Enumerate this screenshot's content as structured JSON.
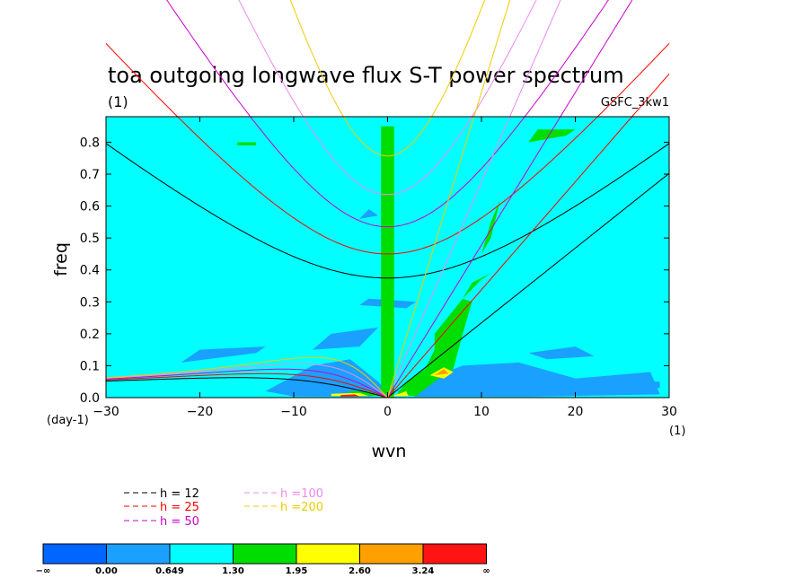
{
  "chart_data": {
    "type": "heatmap",
    "title": "toa outgoing longwave flux S-T power spectrum",
    "subtitle_units": "(1)",
    "case_label": "GSFC_3kw1",
    "xlabel": "wvn",
    "x_units": "(1)",
    "ylabel": "freq",
    "y_units": "(day-1)",
    "xlim": [
      -30,
      30
    ],
    "ylim": [
      0,
      0.88
    ],
    "x_ticks": [
      {
        "value": -30,
        "label": "−30"
      },
      {
        "value": -20,
        "label": "−20"
      },
      {
        "value": -10,
        "label": "−10"
      },
      {
        "value": 0,
        "label": "0"
      },
      {
        "value": 10,
        "label": "10"
      },
      {
        "value": 20,
        "label": "20"
      },
      {
        "value": 30,
        "label": "30"
      }
    ],
    "y_ticks": [
      {
        "value": 0.0,
        "label": "0.0"
      },
      {
        "value": 0.1,
        "label": "0.1"
      },
      {
        "value": 0.2,
        "label": "0.2"
      },
      {
        "value": 0.3,
        "label": "0.3"
      },
      {
        "value": 0.4,
        "label": "0.4"
      },
      {
        "value": 0.5,
        "label": "0.5"
      },
      {
        "value": 0.6,
        "label": "0.6"
      },
      {
        "value": 0.7,
        "label": "0.7"
      },
      {
        "value": 0.8,
        "label": "0.8"
      }
    ],
    "background_level_color": "#00ffff",
    "colorbar": {
      "colors": [
        "#0066ff",
        "#1aa0ff",
        "#00ffff",
        "#00dd00",
        "#ffff00",
        "#ffa000",
        "#ff1414"
      ],
      "labels": [
        "−∞",
        "0.00",
        "0.649",
        "1.30",
        "1.95",
        "2.60",
        "3.24",
        "∞"
      ]
    },
    "dispersion_curves": [
      {
        "name": "h = 12",
        "h": 12,
        "color": "#000000"
      },
      {
        "name": "h = 25",
        "h": 25,
        "color": "#ff0000"
      },
      {
        "name": "h = 50",
        "h": 50,
        "color": "#cc00cc"
      },
      {
        "name": "h =100",
        "h": 100,
        "color": "#ee88ee"
      },
      {
        "name": "h =200",
        "h": 200,
        "color": "#eecc00"
      }
    ],
    "legend_placement": "bottom-left",
    "contour_regions": [
      {
        "level": 1,
        "points": [
          [
            -13,
            0.02
          ],
          [
            -8,
            0.1
          ],
          [
            -4,
            0.12
          ],
          [
            -1,
            0.05
          ],
          [
            0,
            0.015
          ],
          [
            -2,
            0.003
          ],
          [
            -10,
            0.004
          ]
        ]
      },
      {
        "level": 1,
        "points": [
          [
            -8,
            0.15
          ],
          [
            -3,
            0.16
          ],
          [
            -1,
            0.22
          ],
          [
            -6,
            0.2
          ]
        ]
      },
      {
        "level": 1,
        "points": [
          [
            -22,
            0.11
          ],
          [
            -14,
            0.14
          ],
          [
            -13,
            0.16
          ],
          [
            -20,
            0.15
          ]
        ]
      },
      {
        "level": 1,
        "points": [
          [
            -3,
            0.29
          ],
          [
            2,
            0.28
          ],
          [
            3,
            0.3
          ],
          [
            -2,
            0.31
          ]
        ]
      },
      {
        "level": 1,
        "points": [
          [
            -3,
            0.56
          ],
          [
            -1,
            0.57
          ],
          [
            -2,
            0.59
          ]
        ]
      },
      {
        "level": 1,
        "points": [
          [
            1,
            0.02
          ],
          [
            8,
            0.1
          ],
          [
            14,
            0.11
          ],
          [
            20,
            0.06
          ],
          [
            28,
            0.08
          ],
          [
            29,
            0.01
          ],
          [
            15,
            0.003
          ],
          [
            3,
            0.003
          ]
        ]
      },
      {
        "level": 1,
        "points": [
          [
            15,
            0.14
          ],
          [
            20,
            0.16
          ],
          [
            22,
            0.13
          ],
          [
            17,
            0.12
          ]
        ]
      },
      {
        "level": 1,
        "points": [
          [
            26,
            0.02
          ],
          [
            29,
            0.03
          ],
          [
            29,
            0.05
          ],
          [
            26,
            0.05
          ]
        ]
      },
      {
        "level": 3,
        "points": [
          [
            -0.7,
            0.0
          ],
          [
            0.7,
            0.0
          ],
          [
            0.7,
            0.85
          ],
          [
            -0.7,
            0.85
          ]
        ]
      },
      {
        "level": 3,
        "points": [
          [
            5,
            0.2
          ],
          [
            8,
            0.31
          ],
          [
            9,
            0.3
          ],
          [
            8,
            0.2
          ],
          [
            7,
            0.09
          ],
          [
            5,
            0.05
          ],
          [
            3,
            0.005
          ],
          [
            1,
            0.01
          ],
          [
            2,
            0.05
          ],
          [
            4,
            0.09
          ],
          [
            5,
            0.15
          ]
        ]
      },
      {
        "level": 3,
        "points": [
          [
            8,
            0.31
          ],
          [
            9,
            0.36
          ],
          [
            11,
            0.39
          ],
          [
            10,
            0.37
          ]
        ]
      },
      {
        "level": 3,
        "points": [
          [
            10,
            0.45
          ],
          [
            11,
            0.55
          ],
          [
            12,
            0.62
          ],
          [
            11,
            0.5
          ]
        ]
      },
      {
        "level": 3,
        "points": [
          [
            15,
            0.8
          ],
          [
            19,
            0.82
          ],
          [
            20,
            0.84
          ],
          [
            16,
            0.84
          ]
        ]
      },
      {
        "level": 3,
        "points": [
          [
            -16,
            0.79
          ],
          [
            -14,
            0.79
          ],
          [
            -14,
            0.8
          ],
          [
            -16,
            0.8
          ]
        ]
      },
      {
        "level": 3,
        "points": [
          [
            -4,
            0.01
          ],
          [
            -1,
            0.005
          ],
          [
            -2,
            0.02
          ],
          [
            -4,
            0.02
          ]
        ]
      },
      {
        "level": 4,
        "points": [
          [
            4.5,
            0.07
          ],
          [
            6,
            0.095
          ],
          [
            7,
            0.08
          ],
          [
            6,
            0.06
          ]
        ]
      },
      {
        "level": 4,
        "points": [
          [
            -6,
            0.005
          ],
          [
            -2,
            0.005
          ],
          [
            -3,
            0.015
          ],
          [
            -6,
            0.012
          ]
        ]
      },
      {
        "level": 4,
        "points": [
          [
            0.5,
            0.005
          ],
          [
            2,
            0.02
          ],
          [
            2.2,
            0.005
          ]
        ]
      },
      {
        "level": 5,
        "points": [
          [
            5,
            0.07
          ],
          [
            6,
            0.09
          ],
          [
            6.5,
            0.075
          ]
        ]
      },
      {
        "level": 6,
        "points": [
          [
            -5,
            0.003
          ],
          [
            -3,
            0.004
          ],
          [
            -3.5,
            0.01
          ],
          [
            -5,
            0.008
          ]
        ]
      }
    ]
  }
}
